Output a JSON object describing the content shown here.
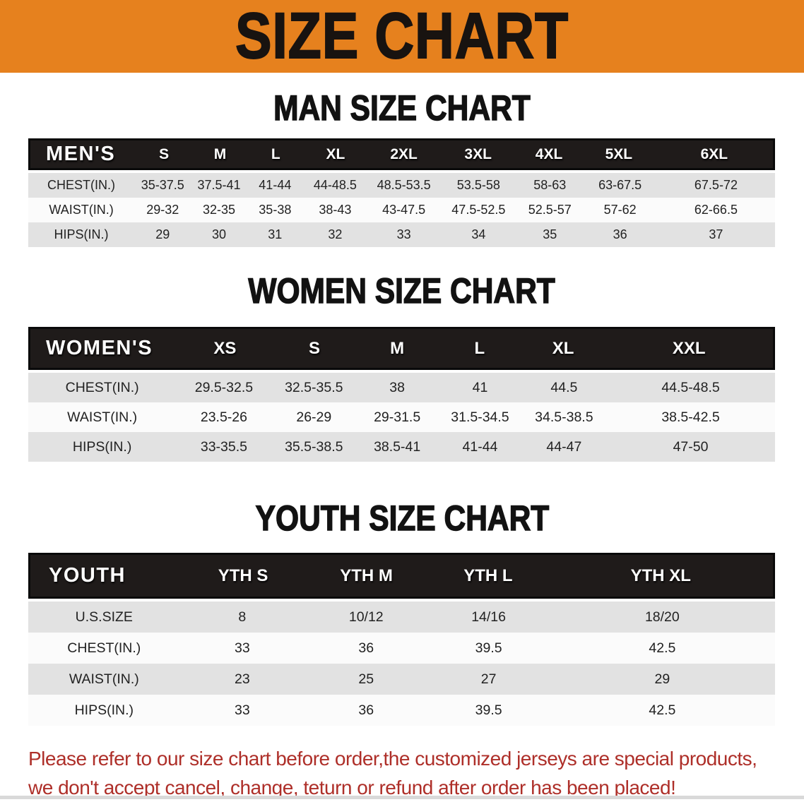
{
  "banner": {
    "title": "SIZE CHART",
    "bg_color": "#E6811E",
    "text_color": "#181310"
  },
  "men": {
    "section_title": "MAN SIZE CHART",
    "label": "MEN'S",
    "sizes": [
      "S",
      "M",
      "L",
      "XL",
      "2XL",
      "3XL",
      "4XL",
      "5XL",
      "6XL"
    ],
    "rows": [
      {
        "label": "CHEST(IN.)",
        "values": [
          "35-37.5",
          "37.5-41",
          "41-44",
          "44-48.5",
          "48.5-53.5",
          "53.5-58",
          "58-63",
          "63-67.5",
          "67.5-72"
        ]
      },
      {
        "label": "WAIST(IN.)",
        "values": [
          "29-32",
          "32-35",
          "35-38",
          "38-43",
          "43-47.5",
          "47.5-52.5",
          "52.5-57",
          "57-62",
          "62-66.5"
        ]
      },
      {
        "label": "HIPS(IN.)",
        "values": [
          "29",
          "30",
          "31",
          "32",
          "33",
          "34",
          "35",
          "36",
          "37"
        ]
      }
    ]
  },
  "women": {
    "section_title": "WOMEN SIZE CHART",
    "label": "WOMEN'S",
    "sizes": [
      "XS",
      "S",
      "M",
      "L",
      "XL",
      "XXL"
    ],
    "rows": [
      {
        "label": "CHEST(IN.)",
        "values": [
          "29.5-32.5",
          "32.5-35.5",
          "38",
          "41",
          "44.5",
          "44.5-48.5"
        ]
      },
      {
        "label": "WAIST(IN.)",
        "values": [
          "23.5-26",
          "26-29",
          "29-31.5",
          "31.5-34.5",
          "34.5-38.5",
          "38.5-42.5"
        ]
      },
      {
        "label": "HIPS(IN.)",
        "values": [
          "33-35.5",
          "35.5-38.5",
          "38.5-41",
          "41-44",
          "44-47",
          "47-50"
        ]
      }
    ]
  },
  "youth": {
    "section_title": "YOUTH SIZE CHART",
    "label": "YOUTH",
    "sizes": [
      "YTH S",
      "YTH M",
      "YTH L",
      "YTH XL"
    ],
    "rows": [
      {
        "label": "U.S.SIZE",
        "values": [
          "8",
          "10/12",
          "14/16",
          "18/20"
        ]
      },
      {
        "label": "CHEST(IN.)",
        "values": [
          "33",
          "36",
          "39.5",
          "42.5"
        ]
      },
      {
        "label": "WAIST(IN.)",
        "values": [
          "23",
          "25",
          "27",
          "29"
        ]
      },
      {
        "label": "HIPS(IN.)",
        "values": [
          "33",
          "36",
          "39.5",
          "42.5"
        ]
      }
    ]
  },
  "disclaimer": {
    "line1": "Please refer to our size chart before order,the customized jerseys are special products,",
    "line2": "we don't accept cancel, change, teturn or refund after order has been placed!",
    "color": "#AE2F29"
  }
}
